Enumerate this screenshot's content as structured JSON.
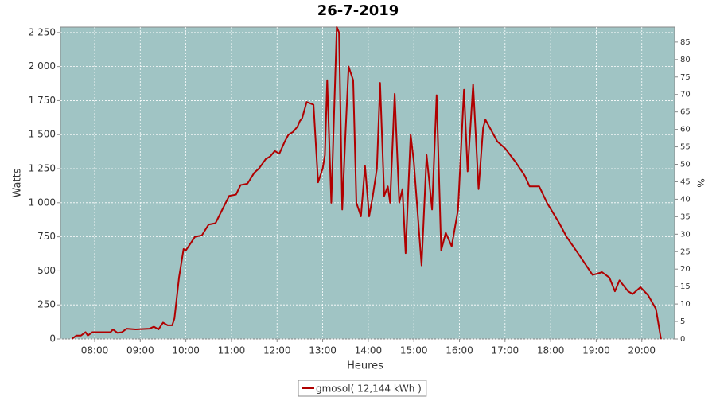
{
  "chart_data": {
    "type": "line",
    "title": "26-7-2019",
    "xlabel": "Heures",
    "ylabel": "Watts",
    "y2label": "%",
    "x": [
      7.5,
      7.6,
      7.7,
      7.8,
      7.85,
      7.95,
      8.1,
      8.35,
      8.4,
      8.5,
      8.6,
      8.7,
      8.9,
      9.2,
      9.3,
      9.4,
      9.5,
      9.6,
      9.7,
      9.75,
      9.85,
      9.95,
      10.0,
      10.1,
      10.2,
      10.35,
      10.5,
      10.65,
      10.8,
      10.95,
      11.1,
      11.2,
      11.35,
      11.5,
      11.6,
      11.75,
      11.85,
      11.95,
      12.05,
      12.17,
      12.25,
      12.35,
      12.45,
      12.5,
      12.55,
      12.65,
      12.8,
      12.9,
      13.0,
      13.05,
      13.1,
      13.19,
      13.31,
      13.36,
      13.43,
      13.5,
      13.57,
      13.67,
      13.74,
      13.84,
      13.93,
      14.02,
      14.1,
      14.19,
      14.26,
      14.35,
      14.43,
      14.48,
      14.58,
      14.68,
      14.75,
      14.82,
      14.93,
      15.0,
      15.17,
      15.28,
      15.4,
      15.5,
      15.6,
      15.7,
      15.83,
      15.97,
      16.1,
      16.18,
      16.3,
      16.42,
      16.52,
      16.57,
      16.83,
      17.0,
      17.23,
      17.43,
      17.54,
      17.75,
      17.92,
      18.19,
      18.35,
      18.66,
      18.92,
      19.13,
      19.29,
      19.41,
      19.51,
      19.7,
      19.8,
      19.97,
      20.14,
      20.31,
      20.42
    ],
    "series": [
      {
        "name": "gmosol( 12,144 kWh )",
        "color": "#b00000",
        "values": [
          0,
          25,
          25,
          50,
          25,
          50,
          50,
          50,
          70,
          45,
          50,
          75,
          70,
          75,
          90,
          70,
          120,
          100,
          100,
          150,
          450,
          660,
          650,
          700,
          750,
          760,
          840,
          850,
          950,
          1050,
          1060,
          1130,
          1140,
          1220,
          1250,
          1320,
          1340,
          1380,
          1360,
          1450,
          1500,
          1520,
          1560,
          1600,
          1620,
          1740,
          1720,
          1150,
          1250,
          1350,
          1900,
          1000,
          2290,
          2250,
          950,
          1500,
          2000,
          1900,
          1000,
          900,
          1270,
          900,
          1050,
          1250,
          1880,
          1050,
          1120,
          1000,
          1800,
          1000,
          1100,
          630,
          1500,
          1300,
          540,
          1350,
          950,
          1790,
          650,
          780,
          680,
          950,
          1830,
          1230,
          1870,
          1100,
          1550,
          1610,
          1450,
          1400,
          1300,
          1200,
          1120,
          1120,
          1000,
          850,
          750,
          600,
          470,
          490,
          450,
          350,
          430,
          350,
          330,
          380,
          320,
          220,
          0
        ]
      }
    ],
    "xlim": [
      7.25,
      20.72
    ],
    "xticks": [
      {
        "value": 8,
        "label": "08:00"
      },
      {
        "value": 9,
        "label": "09:00"
      },
      {
        "value": 10,
        "label": "10:00"
      },
      {
        "value": 11,
        "label": "11:00"
      },
      {
        "value": 12,
        "label": "12:00"
      },
      {
        "value": 13,
        "label": "13:00"
      },
      {
        "value": 14,
        "label": "14:00"
      },
      {
        "value": 15,
        "label": "15:00"
      },
      {
        "value": 16,
        "label": "16:00"
      },
      {
        "value": 17,
        "label": "17:00"
      },
      {
        "value": 18,
        "label": "18:00"
      },
      {
        "value": 19,
        "label": "19:00"
      },
      {
        "value": 20,
        "label": "20:00"
      }
    ],
    "ylim": [
      0,
      2290
    ],
    "yticks": [
      0,
      250,
      500,
      750,
      {
        "value": 1000,
        "label": "1 000"
      },
      {
        "value": 1250,
        "label": "1 250"
      },
      {
        "value": 1500,
        "label": "1 500"
      },
      {
        "value": 1750,
        "label": "1 750"
      },
      {
        "value": 2000,
        "label": "2 000"
      },
      {
        "value": 2250,
        "label": "2 250"
      }
    ],
    "y2lim": [
      0,
      89.3
    ],
    "y2ticks": [
      0,
      5,
      10,
      15,
      20,
      25,
      30,
      35,
      40,
      45,
      50,
      55,
      60,
      65,
      70,
      75,
      80,
      85
    ],
    "grid": true,
    "background": "#a0c4c4",
    "legend": "bottom"
  }
}
